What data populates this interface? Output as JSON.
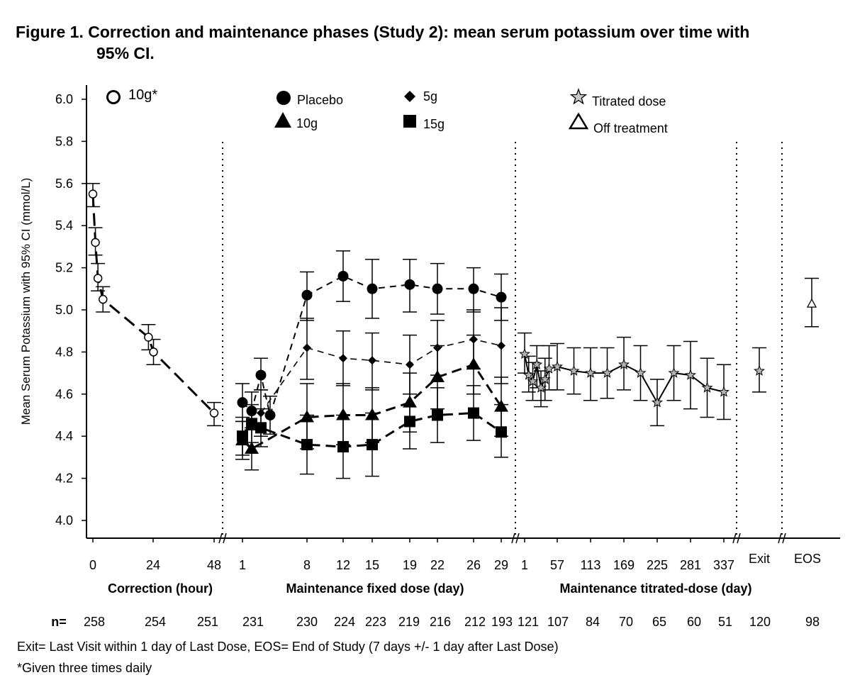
{
  "title_line1": "Figure 1. Correction and maintenance phases (Study 2): mean serum potassium over time with",
  "title_line2": "95% CI.",
  "footnotes": {
    "line1": "Exit= Last Visit within 1 day of Last Dose, EOS= End of Study (7 days +/- 1 day after Last Dose)",
    "line2": "*Given three times daily"
  },
  "chart_data": {
    "type": "line",
    "ylabel": "Mean Serum Potassium with 95% CI (mmol/L)",
    "ylim": [
      3.95,
      6.05
    ],
    "yticks": [
      "4.0",
      "4.2",
      "4.4",
      "4.6",
      "4.8",
      "5.0",
      "5.2",
      "5.4",
      "5.6",
      "5.8",
      "6.0"
    ],
    "grid": false,
    "legend_position": "top",
    "legend": [
      {
        "name": "10g*",
        "marker": "open-circle"
      },
      {
        "name": "Placebo",
        "marker": "filled-circle"
      },
      {
        "name": "5g",
        "marker": "filled-diamond"
      },
      {
        "name": "10g",
        "marker": "filled-triangle"
      },
      {
        "name": "15g",
        "marker": "filled-square"
      },
      {
        "name": "Titrated dose",
        "marker": "gray-star"
      },
      {
        "name": "Off treatment",
        "marker": "open-triangle"
      }
    ],
    "phases": [
      {
        "label": "Correction (hour)",
        "ticks": [
          "0",
          "24",
          "48"
        ]
      },
      {
        "label": "Maintenance fixed dose (day)",
        "ticks": [
          "1",
          "8",
          "12",
          "15",
          "19",
          "22",
          "26",
          "29"
        ]
      },
      {
        "label": "Maintenance titrated-dose (day)",
        "ticks": [
          "1",
          "57",
          "113",
          "169",
          "225",
          "281",
          "337"
        ]
      },
      {
        "label": "",
        "ticks": [
          "Exit"
        ]
      },
      {
        "label": "",
        "ticks": [
          "EOS"
        ]
      }
    ],
    "n_label": "n=",
    "n_values": [
      {
        "tick": "0",
        "n": "258"
      },
      {
        "tick": "24",
        "n": "254"
      },
      {
        "tick": "48",
        "n": "251"
      },
      {
        "tick": "1",
        "n": "231"
      },
      {
        "tick": "8",
        "n": "230"
      },
      {
        "tick": "12",
        "n": "224"
      },
      {
        "tick": "15",
        "n": "223"
      },
      {
        "tick": "19",
        "n": "219"
      },
      {
        "tick": "22",
        "n": "216"
      },
      {
        "tick": "26",
        "n": "212"
      },
      {
        "tick": "29",
        "n": "193"
      },
      {
        "tick": "1",
        "n": "121"
      },
      {
        "tick": "57",
        "n": "107"
      },
      {
        "tick": "113",
        "n": "84"
      },
      {
        "tick": "169",
        "n": "70"
      },
      {
        "tick": "225",
        "n": "65"
      },
      {
        "tick": "281",
        "n": "60"
      },
      {
        "tick": "337",
        "n": "51"
      },
      {
        "tick": "Exit",
        "n": "120"
      },
      {
        "tick": "EOS",
        "n": "98"
      }
    ],
    "series": [
      {
        "name": "10g*",
        "phase": "correction",
        "x_unit": "hour",
        "points": [
          {
            "x": 0,
            "y": 5.55,
            "lo": 5.49,
            "hi": 5.6
          },
          {
            "x": 1,
            "y": 5.32,
            "lo": 5.26,
            "hi": 5.39
          },
          {
            "x": 2,
            "y": 5.15,
            "lo": 5.09,
            "hi": 5.22
          },
          {
            "x": 4,
            "y": 5.05,
            "lo": 4.99,
            "hi": 5.11
          },
          {
            "x": 22,
            "y": 4.87,
            "lo": 4.81,
            "hi": 4.93
          },
          {
            "x": 24,
            "y": 4.8,
            "lo": 4.74,
            "hi": 4.86
          },
          {
            "x": 48,
            "y": 4.51,
            "lo": 4.45,
            "hi": 4.56
          }
        ]
      },
      {
        "name": "Placebo",
        "phase": "maintenance fixed dose",
        "x_unit": "day",
        "points": [
          {
            "x": 1,
            "y": 4.56,
            "lo": 4.47,
            "hi": 4.65
          },
          {
            "x": 2,
            "y": 4.52,
            "lo": 4.43,
            "hi": 4.61
          },
          {
            "x": 3,
            "y": 4.69,
            "lo": 4.62,
            "hi": 4.77
          },
          {
            "x": 4,
            "y": 4.5,
            "lo": 4.41,
            "hi": 4.59
          },
          {
            "x": 8,
            "y": 5.07,
            "lo": 4.95,
            "hi": 5.18
          },
          {
            "x": 12,
            "y": 5.16,
            "lo": 5.04,
            "hi": 5.28
          },
          {
            "x": 15,
            "y": 5.1,
            "lo": 4.96,
            "hi": 5.24
          },
          {
            "x": 19,
            "y": 5.12,
            "lo": 4.99,
            "hi": 5.24
          },
          {
            "x": 22,
            "y": 5.1,
            "lo": 4.98,
            "hi": 5.22
          },
          {
            "x": 26,
            "y": 5.1,
            "lo": 4.99,
            "hi": 5.2
          },
          {
            "x": 29,
            "y": 5.06,
            "lo": 4.95,
            "hi": 5.17
          }
        ]
      },
      {
        "name": "5g",
        "phase": "maintenance fixed dose",
        "x_unit": "day",
        "points": [
          {
            "x": 3,
            "y": 4.51,
            "lo": 4.4,
            "hi": 4.62
          },
          {
            "x": 8,
            "y": 4.82,
            "lo": 4.67,
            "hi": 4.96
          },
          {
            "x": 12,
            "y": 4.77,
            "lo": 4.64,
            "hi": 4.9
          },
          {
            "x": 15,
            "y": 4.76,
            "lo": 4.62,
            "hi": 4.89
          },
          {
            "x": 19,
            "y": 4.74,
            "lo": 4.6,
            "hi": 4.88
          },
          {
            "x": 22,
            "y": 4.82,
            "lo": 4.69,
            "hi": 4.95
          },
          {
            "x": 26,
            "y": 4.86,
            "lo": 4.72,
            "hi": 5.0
          },
          {
            "x": 29,
            "y": 4.83,
            "lo": 4.65,
            "hi": 5.01
          }
        ]
      },
      {
        "name": "10g",
        "phase": "maintenance fixed dose",
        "x_unit": "day",
        "points": [
          {
            "x": 1,
            "y": 4.38,
            "lo": 4.29,
            "hi": 4.47
          },
          {
            "x": 2,
            "y": 4.34,
            "lo": 4.24,
            "hi": 4.44
          },
          {
            "x": 8,
            "y": 4.49,
            "lo": 4.34,
            "hi": 4.65
          },
          {
            "x": 12,
            "y": 4.5,
            "lo": 4.36,
            "hi": 4.65
          },
          {
            "x": 15,
            "y": 4.5,
            "lo": 4.37,
            "hi": 4.63
          },
          {
            "x": 19,
            "y": 4.56,
            "lo": 4.42,
            "hi": 4.7
          },
          {
            "x": 22,
            "y": 4.68,
            "lo": 4.53,
            "hi": 4.83
          },
          {
            "x": 26,
            "y": 4.74,
            "lo": 4.6,
            "hi": 4.88
          },
          {
            "x": 29,
            "y": 4.54,
            "lo": 4.4,
            "hi": 4.68
          }
        ]
      },
      {
        "name": "15g",
        "phase": "maintenance fixed dose",
        "x_unit": "day",
        "points": [
          {
            "x": 1,
            "y": 4.4,
            "lo": 4.31,
            "hi": 4.49
          },
          {
            "x": 2,
            "y": 4.46,
            "lo": 4.37,
            "hi": 4.55
          },
          {
            "x": 3,
            "y": 4.44,
            "lo": 4.35,
            "hi": 4.53
          },
          {
            "x": 8,
            "y": 4.36,
            "lo": 4.22,
            "hi": 4.5
          },
          {
            "x": 12,
            "y": 4.35,
            "lo": 4.2,
            "hi": 4.5
          },
          {
            "x": 15,
            "y": 4.36,
            "lo": 4.21,
            "hi": 4.51
          },
          {
            "x": 19,
            "y": 4.47,
            "lo": 4.34,
            "hi": 4.6
          },
          {
            "x": 22,
            "y": 4.5,
            "lo": 4.37,
            "hi": 4.63
          },
          {
            "x": 26,
            "y": 4.51,
            "lo": 4.38,
            "hi": 4.64
          },
          {
            "x": 29,
            "y": 4.42,
            "lo": 4.3,
            "hi": 4.55
          }
        ]
      },
      {
        "name": "Titrated dose",
        "phase": "maintenance titrated-dose",
        "x_unit": "day",
        "points": [
          {
            "x": 1,
            "y": 4.79,
            "lo": 4.7,
            "hi": 4.89
          },
          {
            "x": 8,
            "y": 4.69,
            "lo": 4.61,
            "hi": 4.78
          },
          {
            "x": 15,
            "y": 4.66,
            "lo": 4.57,
            "hi": 4.75
          },
          {
            "x": 22,
            "y": 4.74,
            "lo": 4.63,
            "hi": 4.83
          },
          {
            "x": 29,
            "y": 4.63,
            "lo": 4.54,
            "hi": 4.71
          },
          {
            "x": 36,
            "y": 4.67,
            "lo": 4.57,
            "hi": 4.77
          },
          {
            "x": 43,
            "y": 4.72,
            "lo": 4.62,
            "hi": 4.83
          },
          {
            "x": 57,
            "y": 4.73,
            "lo": 4.62,
            "hi": 4.84
          },
          {
            "x": 85,
            "y": 4.71,
            "lo": 4.6,
            "hi": 4.82
          },
          {
            "x": 113,
            "y": 4.7,
            "lo": 4.57,
            "hi": 4.82
          },
          {
            "x": 141,
            "y": 4.7,
            "lo": 4.58,
            "hi": 4.82
          },
          {
            "x": 169,
            "y": 4.74,
            "lo": 4.62,
            "hi": 4.87
          },
          {
            "x": 197,
            "y": 4.7,
            "lo": 4.57,
            "hi": 4.83
          },
          {
            "x": 225,
            "y": 4.56,
            "lo": 4.45,
            "hi": 4.67
          },
          {
            "x": 253,
            "y": 4.7,
            "lo": 4.57,
            "hi": 4.83
          },
          {
            "x": 281,
            "y": 4.69,
            "lo": 4.53,
            "hi": 4.85
          },
          {
            "x": 309,
            "y": 4.63,
            "lo": 4.49,
            "hi": 4.77
          },
          {
            "x": 337,
            "y": 4.61,
            "lo": 4.48,
            "hi": 4.74
          }
        ]
      },
      {
        "name": "Titrated dose (Exit)",
        "phase": "exit",
        "points": [
          {
            "x": "Exit",
            "y": 4.71,
            "lo": 4.61,
            "hi": 4.82
          }
        ]
      },
      {
        "name": "Off treatment",
        "phase": "eos",
        "points": [
          {
            "x": "EOS",
            "y": 5.03,
            "lo": 4.92,
            "hi": 5.15
          }
        ]
      }
    ]
  }
}
